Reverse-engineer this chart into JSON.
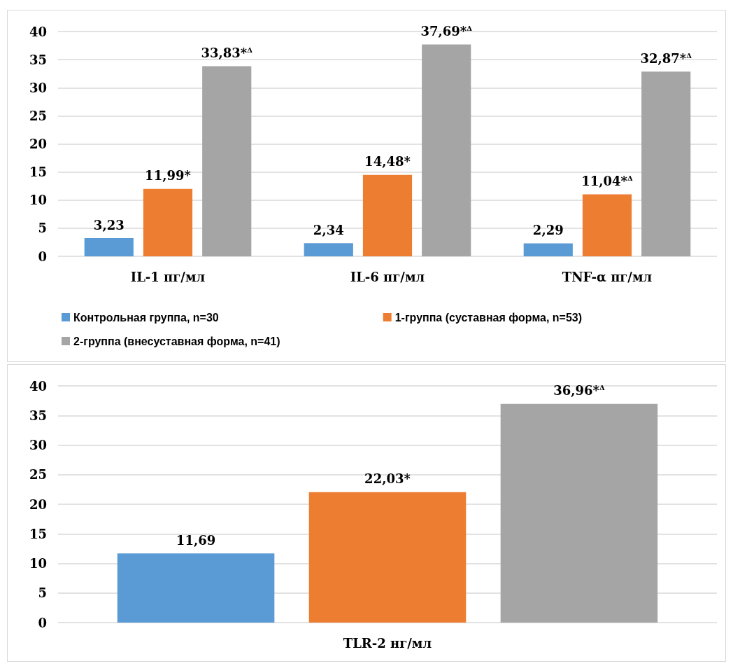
{
  "chart_data": [
    {
      "type": "bar",
      "categories": [
        "IL-1 пг/мл",
        "IL-6 пг/мл",
        "TNF-α пг/мл"
      ],
      "series": [
        {
          "name": "Контрольная группа, n=30",
          "color": "#5b9bd5",
          "values": [
            3.23,
            2.34,
            2.29
          ],
          "value_labels": [
            "3,23",
            "2,34",
            "2,29"
          ]
        },
        {
          "name": "1-группа (суставная форма, n=53)",
          "color": "#ed7d31",
          "values": [
            11.99,
            14.48,
            11.04
          ],
          "value_labels": [
            "11,99*",
            "14,48*",
            "11,04*$^{Δ}$"
          ]
        },
        {
          "name": "2-группа (внесуставная форма, n=41)",
          "color": "#a5a5a5",
          "values": [
            33.83,
            37.69,
            32.87
          ],
          "value_labels": [
            "33,83*$^{Δ}$",
            "37,69*$^{Δ}$",
            "32,87*$^{Δ}$"
          ]
        }
      ],
      "ylim": [
        0,
        40
      ],
      "yticks": [
        0,
        5,
        10,
        15,
        20,
        25,
        30,
        35,
        40
      ],
      "grid": "y",
      "legend": "bottom"
    },
    {
      "type": "bar",
      "categories": [
        "TLR-2 нг/мл"
      ],
      "series": [
        {
          "color": "#5b9bd5",
          "values": [
            11.69
          ],
          "value_labels": [
            "11,69"
          ]
        },
        {
          "color": "#ed7d31",
          "values": [
            22.03
          ],
          "value_labels": [
            "22,03*"
          ]
        },
        {
          "color": "#a5a5a5",
          "values": [
            36.96
          ],
          "value_labels": [
            "36,96*$^{Δ}$"
          ]
        }
      ],
      "ylim": [
        0,
        40
      ],
      "yticks": [
        0,
        5,
        10,
        15,
        20,
        25,
        30,
        35,
        40
      ],
      "grid": "y"
    }
  ]
}
